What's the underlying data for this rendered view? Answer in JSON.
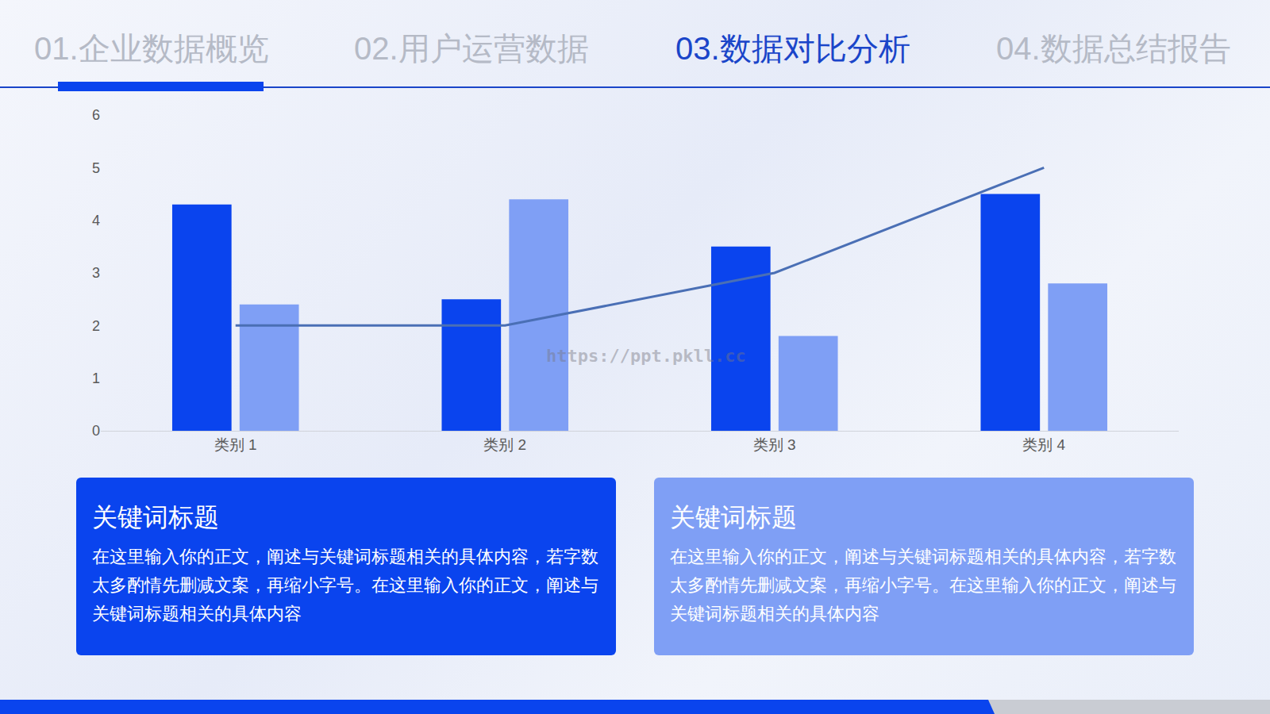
{
  "nav": {
    "items": [
      "01.企业数据概览",
      "02.用户运营数据",
      "03.数据对比分析",
      "04.数据总结报告"
    ],
    "active": 2
  },
  "chart_data": {
    "type": "bar",
    "categories": [
      "类别 1",
      "类别 2",
      "类别 3",
      "类别 4"
    ],
    "series": [
      {
        "type": "bar",
        "color": "#0a44ee",
        "values": [
          4.3,
          2.5,
          3.5,
          4.5
        ]
      },
      {
        "type": "bar",
        "color": "#7f9ff5",
        "values": [
          2.4,
          4.4,
          1.8,
          2.8
        ]
      },
      {
        "type": "line",
        "color": "#4a6fb5",
        "values": [
          2,
          2,
          3,
          5
        ]
      }
    ],
    "ylim": [
      0,
      6
    ],
    "yticks": [
      0,
      1,
      2,
      3,
      4,
      5,
      6
    ],
    "grid": false
  },
  "cards": [
    {
      "title": "关键词标题",
      "text": "在这里输入你的正文，阐述与关键词标题相关的具体内容，若字数太多酌情先删减文案，再缩小字号。在这里输入你的正文，阐述与关键词标题相关的具体内容",
      "color": "#0a44ee"
    },
    {
      "title": "关键词标题",
      "text": "在这里输入你的正文，阐述与关键词标题相关的具体内容，若字数太多酌情先删减文案，再缩小字号。在这里输入你的正文，阐述与关键词标题相关的具体内容",
      "color": "#7f9ff5"
    }
  ],
  "watermark": "https://ppt.pkll.cc"
}
